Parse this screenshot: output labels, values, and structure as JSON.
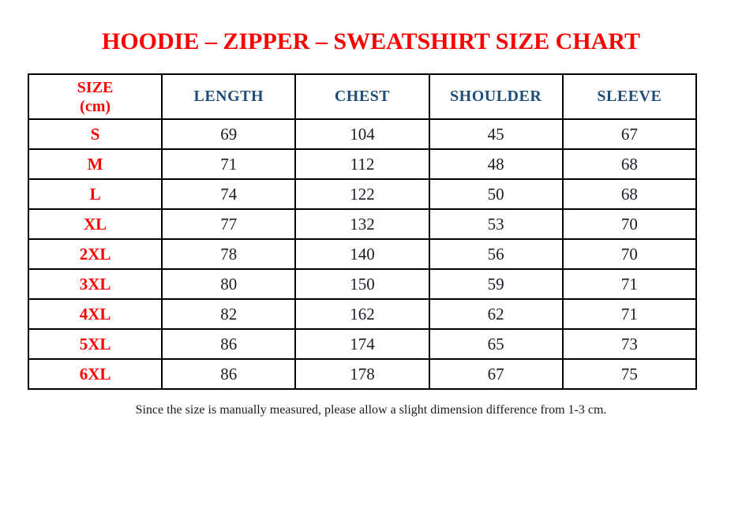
{
  "page": {
    "stray_mark": ".",
    "colors": {
      "title_red": "#FF0000",
      "header_blue": "#1F4E79",
      "body_text": "#1C1C26",
      "border": "#000000",
      "background": "#FFFFFF"
    }
  },
  "title": "HOODIE – ZIPPER – SWEATSHIRT SIZE CHART",
  "table": {
    "size_header": {
      "line1": "SIZE",
      "line2": "(cm)"
    },
    "columns": [
      "LENGTH",
      "CHEST",
      "SHOULDER",
      "SLEEVE"
    ],
    "rows": [
      {
        "size": "S",
        "length": "69",
        "chest": "104",
        "shoulder": "45",
        "sleeve": "67"
      },
      {
        "size": "M",
        "length": "71",
        "chest": "112",
        "shoulder": "48",
        "sleeve": "68"
      },
      {
        "size": "L",
        "length": "74",
        "chest": "122",
        "shoulder": "50",
        "sleeve": "68"
      },
      {
        "size": "XL",
        "length": "77",
        "chest": "132",
        "shoulder": "53",
        "sleeve": "70"
      },
      {
        "size": "2XL",
        "length": "78",
        "chest": "140",
        "shoulder": "56",
        "sleeve": "70"
      },
      {
        "size": "3XL",
        "length": "80",
        "chest": "150",
        "shoulder": "59",
        "sleeve": "71"
      },
      {
        "size": "4XL",
        "length": "82",
        "chest": "162",
        "shoulder": "62",
        "sleeve": "71"
      },
      {
        "size": "5XL",
        "length": "86",
        "chest": "174",
        "shoulder": "65",
        "sleeve": "73"
      },
      {
        "size": "6XL",
        "length": "86",
        "chest": "178",
        "shoulder": "67",
        "sleeve": "75"
      }
    ]
  },
  "footer": "Since the size is manually measured, please allow a slight dimension difference from 1-3 cm."
}
